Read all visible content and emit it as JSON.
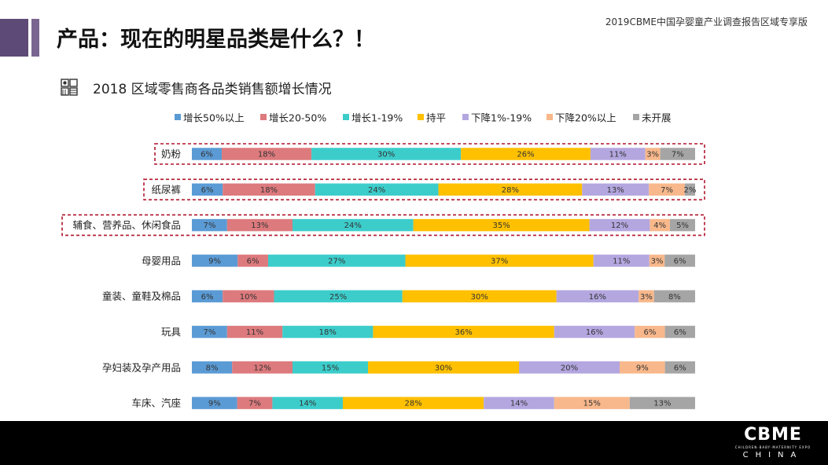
{
  "header": {
    "title": "产品：现在的明星品类是什么？！",
    "report_name": "2019CBME中国孕婴童产业调查报告区域专享版",
    "subtitle": "2018 区域零售商各品类销售额增长情况"
  },
  "logo": {
    "main": "CBME",
    "tagline": "CHILDREN·BABY·MATERNITY EXPO",
    "sub": "CHINA"
  },
  "chart_data": {
    "type": "bar",
    "stacked": true,
    "orientation": "horizontal",
    "percent": true,
    "title": "2018 区域零售商各品类销售额增长情况",
    "categories": [
      "奶粉",
      "纸尿裤",
      "辅食、营养品、休闲食品",
      "母婴用品",
      "童装、童鞋及棉品",
      "玩具",
      "孕妇装及孕产用品",
      "车床、汽座"
    ],
    "series": [
      {
        "name": "增长50%以上",
        "color": "#5b9bd5",
        "values": [
          6,
          6,
          7,
          9,
          6,
          7,
          8,
          9
        ]
      },
      {
        "name": "增长20-50%",
        "color": "#dd7a7d",
        "values": [
          18,
          18,
          13,
          6,
          10,
          11,
          12,
          7
        ]
      },
      {
        "name": "增长1-19%",
        "color": "#3ccdcb",
        "values": [
          30,
          24,
          24,
          27,
          25,
          18,
          15,
          14
        ]
      },
      {
        "name": "持平",
        "color": "#ffc000",
        "values": [
          26,
          28,
          35,
          37,
          30,
          36,
          30,
          28
        ]
      },
      {
        "name": "下降1%-19%",
        "color": "#b4a7e0",
        "values": [
          11,
          13,
          12,
          11,
          16,
          16,
          20,
          14
        ]
      },
      {
        "name": "下降20%以上",
        "color": "#f8b88b",
        "values": [
          3,
          7,
          4,
          3,
          3,
          6,
          9,
          15
        ]
      },
      {
        "name": "未开展",
        "color": "#a5a5a5",
        "values": [
          7,
          2,
          5,
          6,
          8,
          6,
          6,
          13
        ]
      }
    ],
    "highlighted_categories": [
      0,
      1,
      2
    ],
    "legend_position": "top",
    "grid": false
  }
}
